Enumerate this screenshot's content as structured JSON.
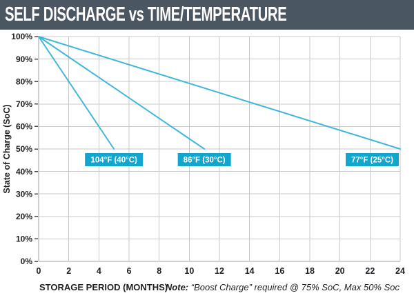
{
  "header": {
    "title": "SELF DISCHARGE vs TIME/TEMPERATURE",
    "bg_color": "#4a5662",
    "text_color": "#ffffff"
  },
  "chart_data": {
    "type": "line",
    "title": "SELF DISCHARGE vs TIME/TEMPERATURE",
    "xlabel": "STORAGE PERIOD (MONTHS)",
    "ylabel": "State of Charge (SoC)",
    "xlim": [
      0,
      24
    ],
    "ylim": [
      0,
      100
    ],
    "x_ticks": [
      0,
      2,
      4,
      6,
      8,
      10,
      12,
      14,
      16,
      18,
      20,
      22,
      24
    ],
    "y_ticks": [
      0,
      10,
      20,
      30,
      40,
      50,
      60,
      70,
      80,
      90,
      100
    ],
    "y_tick_suffix": "%",
    "grid": true,
    "legend_position": "on-plot-labels",
    "series": [
      {
        "name": "104°F (40°C)",
        "x": [
          0,
          5
        ],
        "y": [
          100,
          50
        ]
      },
      {
        "name": "86°F (30°C)",
        "x": [
          0,
          11
        ],
        "y": [
          100,
          50
        ]
      },
      {
        "name": "77°F (25°C)",
        "x": [
          0,
          24
        ],
        "y": [
          100,
          50
        ]
      }
    ],
    "note_label": "Note:",
    "note_text": "“Boost Charge” required @ 75% SoC, Max 50% Soc",
    "colors": {
      "line": "#3fb7dc",
      "series_label_bg": "#12a6cd",
      "series_label_text": "#ffffff",
      "grid": "#c9c9c9",
      "axis": "#9f9f9f",
      "tick": "#4a4a4a",
      "text": "#1d1f22"
    }
  }
}
